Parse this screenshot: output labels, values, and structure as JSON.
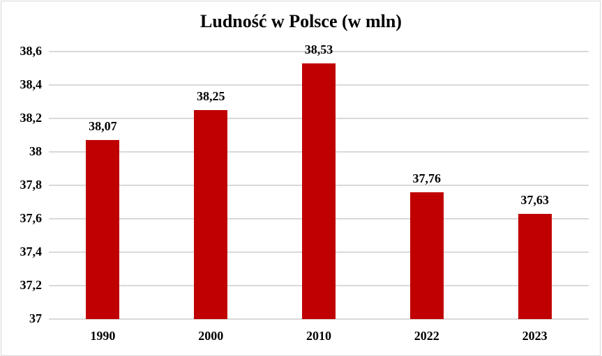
{
  "chart_data": {
    "type": "bar",
    "title": "Ludność w Polsce (w mln)",
    "xlabel": "",
    "ylabel": "",
    "categories": [
      "1990",
      "2000",
      "2010",
      "2022",
      "2023"
    ],
    "values": [
      38.07,
      38.25,
      38.53,
      37.76,
      37.63
    ],
    "value_labels": [
      "38,07",
      "38,25",
      "38,53",
      "37,76",
      "37,63"
    ],
    "ylim": [
      37,
      38.6
    ],
    "yticks": [
      37,
      37.2,
      37.4,
      37.6,
      37.8,
      38,
      38.2,
      38.4,
      38.6
    ],
    "ytick_labels": [
      "37",
      "37,2",
      "37,4",
      "37,6",
      "37,8",
      "38",
      "38,2",
      "38,4",
      "38,6"
    ],
    "grid": true,
    "legend": null,
    "bar_color": "#c00000",
    "grid_color": "#d9d9d9"
  }
}
